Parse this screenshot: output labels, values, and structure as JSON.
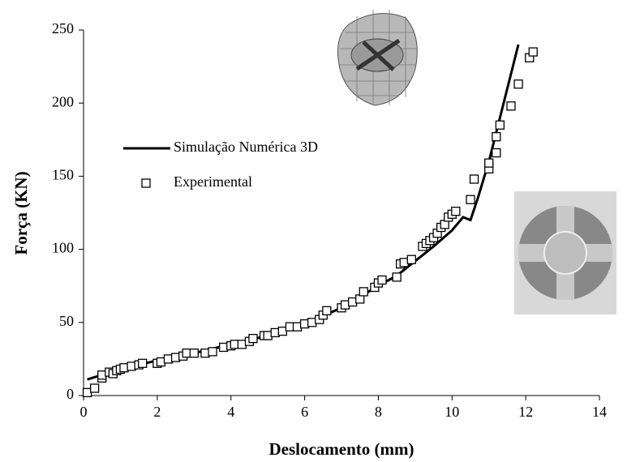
{
  "chart_data": {
    "type": "line-scatter",
    "x_label": "Deslocamento (mm)",
    "y_label": "Força (KN)",
    "xlim": [
      0,
      14
    ],
    "xticks": [
      0,
      2,
      4,
      6,
      8,
      10,
      12,
      14
    ],
    "ylim": [
      0,
      250
    ],
    "yticks": [
      0,
      50,
      100,
      150,
      200,
      250
    ],
    "grid": false,
    "legend": "upper left",
    "series": [
      {
        "name": "Simulação Numérica 3D",
        "kind": "line",
        "color": "#000000",
        "x": [
          0.1,
          1,
          2,
          3,
          4,
          5,
          6,
          7,
          8,
          8.5,
          9,
          9.5,
          10,
          10.3,
          10.5,
          10.7,
          11,
          11.3,
          11.6,
          11.8
        ],
        "values": [
          11,
          18,
          24,
          29,
          35,
          41,
          49,
          60,
          75,
          82,
          92,
          102,
          113,
          122,
          120,
          135,
          160,
          190,
          220,
          240
        ]
      },
      {
        "name": "Experimental",
        "kind": "scatter",
        "color": "#000000",
        "x": [
          0.1,
          0.3,
          0.5,
          0.5,
          0.7,
          0.8,
          0.9,
          1,
          1.1,
          1.3,
          1.5,
          1.6,
          2,
          2.1,
          2.3,
          2.5,
          2.7,
          2.8,
          3,
          3.3,
          3.5,
          3.8,
          4,
          4.1,
          4.3,
          4.5,
          4.6,
          4.9,
          5,
          5.2,
          5.4,
          5.6,
          5.8,
          6,
          6.2,
          6.4,
          6.5,
          6.6,
          7,
          7.1,
          7.3,
          7.5,
          7.6,
          7.9,
          8,
          8.1,
          8.5,
          8.6,
          8.7,
          8.9,
          9.2,
          9.3,
          9.4,
          9.5,
          9.6,
          9.7,
          9.8,
          9.9,
          10,
          10.1,
          10.5,
          10.6,
          11,
          11,
          11.2,
          11.2,
          11.3,
          11.6,
          11.8,
          12.1,
          12.2
        ],
        "values": [
          2,
          5,
          12,
          14,
          16,
          15,
          17,
          18,
          19,
          20,
          21,
          22,
          22,
          23,
          25,
          26,
          27,
          29,
          29,
          29,
          30,
          33,
          34,
          35,
          35,
          37,
          39,
          41,
          41,
          43,
          44,
          47,
          47,
          49,
          50,
          52,
          55,
          58,
          60,
          62,
          64,
          66,
          71,
          74,
          77,
          79,
          81,
          90,
          91,
          93,
          102,
          104,
          106,
          108,
          111,
          115,
          117,
          122,
          124,
          126,
          134,
          148,
          155,
          159,
          166,
          177,
          185,
          198,
          213,
          231,
          235
        ]
      }
    ]
  }
}
